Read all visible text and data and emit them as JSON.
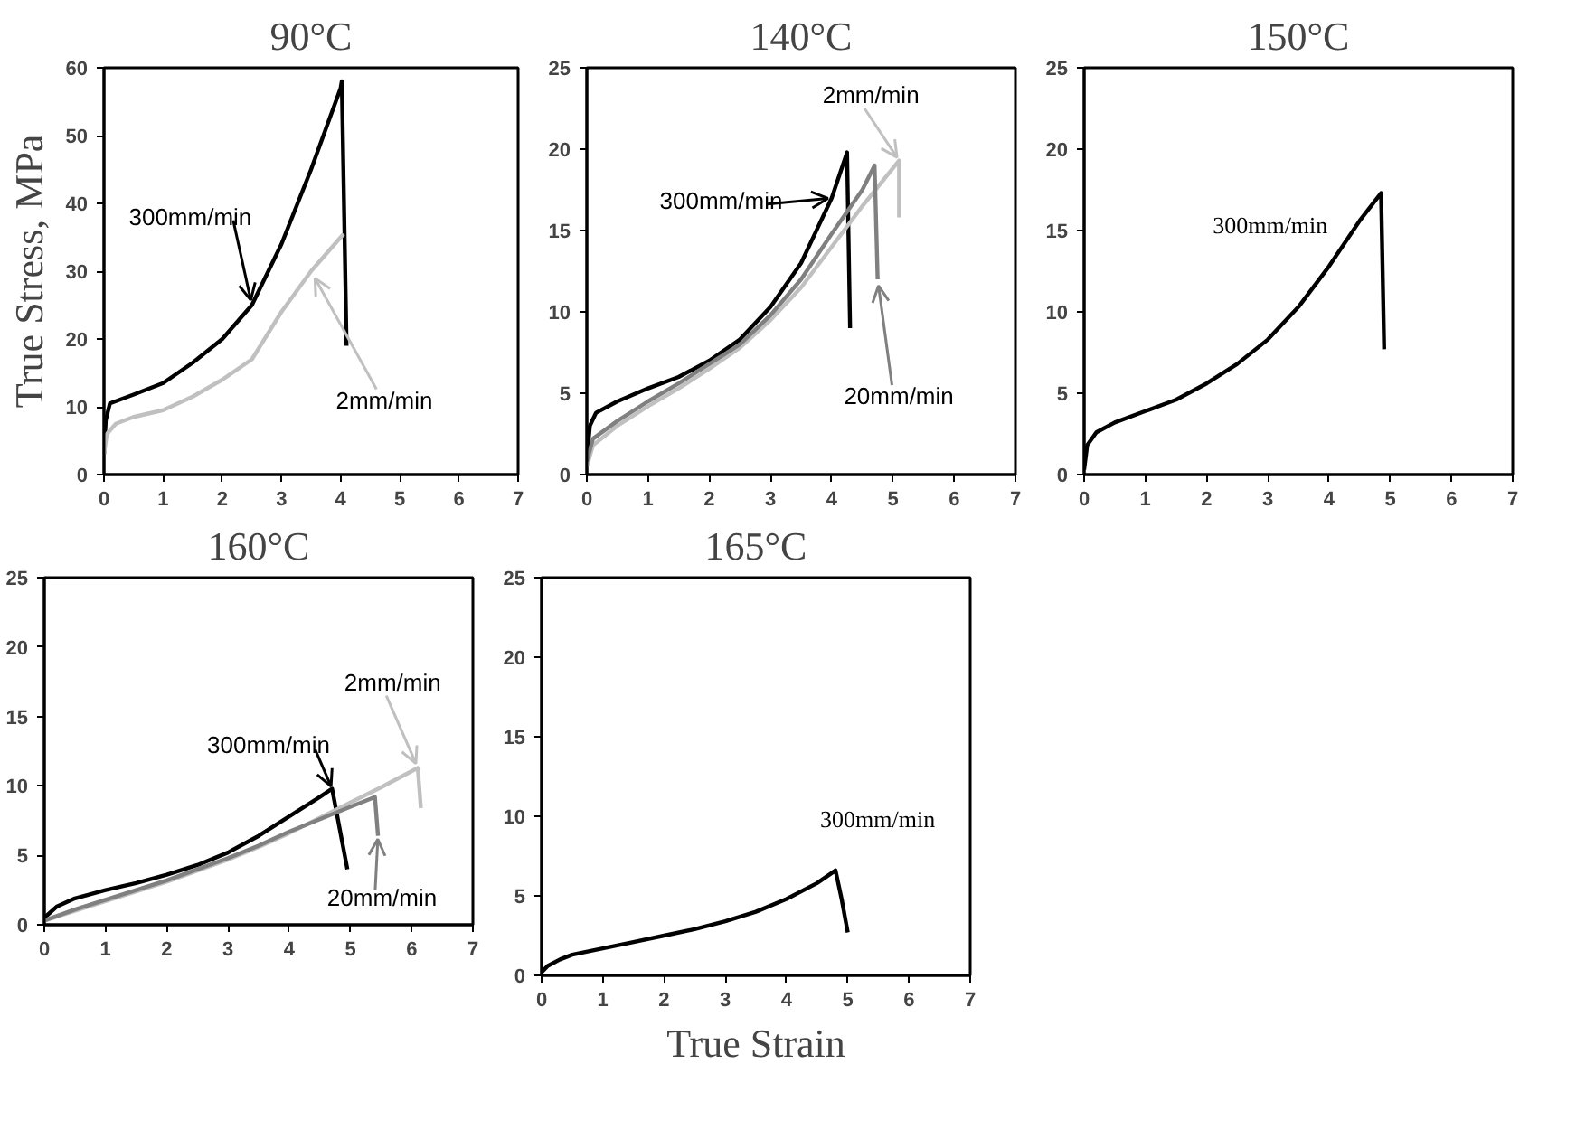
{
  "chart_data": [
    {
      "type": "line",
      "title": "90°C",
      "ylabel": "True Stress, MPa",
      "xlim": [
        0,
        7
      ],
      "ylim": [
        0,
        60
      ],
      "xticks": [
        0,
        1,
        2,
        3,
        4,
        5,
        6,
        7
      ],
      "yticks": [
        0,
        10,
        20,
        30,
        40,
        50,
        60
      ],
      "series": [
        {
          "name": "300mm/min",
          "color": "#000000",
          "x": [
            0,
            0.03,
            0.1,
            0.5,
            1,
            1.5,
            2,
            2.5,
            3,
            3.5,
            4,
            4.02,
            4.1
          ],
          "values": [
            3,
            8,
            10.5,
            11.8,
            13.5,
            16.5,
            20,
            25,
            34,
            45,
            57,
            58,
            19
          ]
        },
        {
          "name": "2mm/min",
          "color": "#c0c0c0",
          "x": [
            0,
            0.05,
            0.2,
            0.5,
            1,
            1.5,
            2,
            2.5,
            3,
            3.5,
            4.05
          ],
          "values": [
            3,
            6,
            7.5,
            8.5,
            9.5,
            11.5,
            14,
            17,
            24,
            30,
            35.5
          ]
        }
      ]
    },
    {
      "type": "line",
      "title": "140°C",
      "xlim": [
        0,
        7
      ],
      "ylim": [
        0,
        25
      ],
      "xticks": [
        0,
        1,
        2,
        3,
        4,
        5,
        6,
        7
      ],
      "yticks": [
        0,
        5,
        10,
        15,
        20,
        25
      ],
      "series": [
        {
          "name": "300mm/min",
          "color": "#000000",
          "x": [
            0,
            0.05,
            0.15,
            0.5,
            1,
            1.5,
            2,
            2.5,
            3,
            3.5,
            4,
            4.25,
            4.3
          ],
          "values": [
            1,
            3,
            3.8,
            4.5,
            5.3,
            6,
            7,
            8.3,
            10.3,
            13,
            17,
            19.8,
            9
          ]
        },
        {
          "name": "2mm/min",
          "color": "#c0c0c0",
          "x": [
            0,
            0.1,
            0.5,
            1,
            1.5,
            2,
            2.5,
            3,
            3.5,
            4,
            4.5,
            5.1,
            5.1
          ],
          "values": [
            0.5,
            1.8,
            3,
            4.2,
            5.3,
            6.5,
            7.8,
            9.5,
            11.5,
            14,
            16.5,
            19.3,
            15.8
          ]
        },
        {
          "name": "20mm/min",
          "color": "#808080",
          "x": [
            0,
            0.1,
            0.5,
            1,
            1.5,
            2,
            2.5,
            3,
            3.5,
            4,
            4.5,
            4.7,
            4.75
          ],
          "values": [
            0.8,
            2.2,
            3.3,
            4.5,
            5.6,
            6.8,
            8,
            9.8,
            12,
            14.8,
            17.5,
            19,
            12
          ]
        }
      ]
    },
    {
      "type": "line",
      "title": "150°C",
      "xlim": [
        0,
        7
      ],
      "ylim": [
        0,
        25
      ],
      "xticks": [
        0,
        1,
        2,
        3,
        4,
        5,
        6,
        7
      ],
      "yticks": [
        0,
        5,
        10,
        15,
        20,
        25
      ],
      "series": [
        {
          "name": "300mm/min",
          "color": "#000000",
          "x": [
            0,
            0.05,
            0.2,
            0.5,
            1,
            1.5,
            2,
            2.5,
            3,
            3.5,
            4,
            4.5,
            4.85,
            4.9
          ],
          "values": [
            0.3,
            1.8,
            2.6,
            3.2,
            3.9,
            4.6,
            5.6,
            6.8,
            8.3,
            10.3,
            12.8,
            15.6,
            17.3,
            7.7
          ]
        }
      ]
    },
    {
      "type": "line",
      "title": "160°C",
      "xlim": [
        0,
        7
      ],
      "ylim": [
        0,
        25
      ],
      "xticks": [
        0,
        1,
        2,
        3,
        4,
        5,
        6,
        7
      ],
      "yticks": [
        0,
        5,
        10,
        15,
        20,
        25
      ],
      "series": [
        {
          "name": "300mm/min",
          "color": "#000000",
          "x": [
            0,
            0.2,
            0.5,
            1,
            1.5,
            2,
            2.5,
            3,
            3.5,
            4,
            4.5,
            4.7,
            4.95
          ],
          "values": [
            0.5,
            1.3,
            1.9,
            2.5,
            3,
            3.6,
            4.3,
            5.2,
            6.4,
            7.8,
            9.2,
            9.8,
            4
          ]
        },
        {
          "name": "2mm/min",
          "color": "#c0c0c0",
          "x": [
            0,
            0.5,
            1,
            1.5,
            2,
            2.5,
            3,
            3.5,
            4,
            4.5,
            5,
            5.5,
            6.1,
            6.15
          ],
          "values": [
            0.3,
            1,
            1.7,
            2.4,
            3.1,
            3.9,
            4.7,
            5.6,
            6.6,
            7.7,
            8.8,
            9.9,
            11.3,
            8.4
          ]
        },
        {
          "name": "20mm/min",
          "color": "#808080",
          "x": [
            0,
            0.5,
            1,
            1.5,
            2,
            2.5,
            3,
            3.5,
            4,
            4.5,
            5,
            5.4,
            5.45
          ],
          "values": [
            0.3,
            1.1,
            1.8,
            2.5,
            3.2,
            4,
            4.8,
            5.7,
            6.7,
            7.6,
            8.5,
            9.2,
            6.4
          ]
        }
      ]
    },
    {
      "type": "line",
      "title": "165°C",
      "xlabel": "True Strain",
      "xlim": [
        0,
        7
      ],
      "ylim": [
        0,
        25
      ],
      "xticks": [
        0,
        1,
        2,
        3,
        4,
        5,
        6,
        7
      ],
      "yticks": [
        0,
        5,
        10,
        15,
        20,
        25
      ],
      "series": [
        {
          "name": "300mm/min",
          "color": "#000000",
          "x": [
            0,
            0.1,
            0.3,
            0.5,
            1,
            1.5,
            2,
            2.5,
            3,
            3.5,
            4,
            4.5,
            4.8,
            4.9,
            5
          ],
          "values": [
            0.2,
            0.6,
            1,
            1.3,
            1.7,
            2.1,
            2.5,
            2.9,
            3.4,
            4,
            4.8,
            5.8,
            6.6,
            4.8,
            2.7
          ]
        }
      ]
    }
  ]
}
